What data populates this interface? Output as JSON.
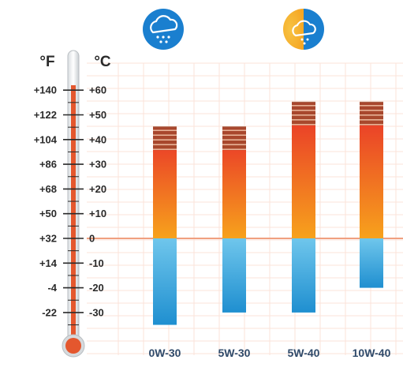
{
  "chart_data": {
    "type": "bar",
    "title": "",
    "scales": {
      "fahrenheit_unit": "°F",
      "celsius_unit": "°C",
      "fahrenheit_ticks": [
        "+140",
        "+122",
        "+104",
        "+86",
        "+68",
        "+50",
        "+32",
        "+14",
        "-4",
        "-22"
      ],
      "celsius_ticks": [
        "+60",
        "+50",
        "+40",
        "+30",
        "+20",
        "+10",
        "0",
        "-10",
        "-20",
        "-30"
      ]
    },
    "ylim": [
      -35,
      65
    ],
    "categories": [
      "0W-30",
      "5W-30",
      "5W-40",
      "10W-40"
    ],
    "ranges": [
      {
        "low": -35,
        "high": 45
      },
      {
        "low": -30,
        "high": 45
      },
      {
        "low": -30,
        "high": 55
      },
      {
        "low": -20,
        "high": 55
      }
    ],
    "icons": [
      "snow-cloud-icon",
      "sun-cloud-icon"
    ],
    "colors": {
      "hot_top": "#e8302a",
      "hot_bottom": "#f7a21c",
      "cold_top": "#6fc6ec",
      "cold_bottom": "#1f8fd0",
      "cap": "#9c4a2e",
      "thermometer_fill": "#e4572e",
      "zero_line": "#f0a080",
      "axis_text": "#2a2a2a",
      "category_text": "#2f4a6a",
      "icon_blue": "#1a7fcf",
      "icon_orange": "#f5a623"
    }
  }
}
